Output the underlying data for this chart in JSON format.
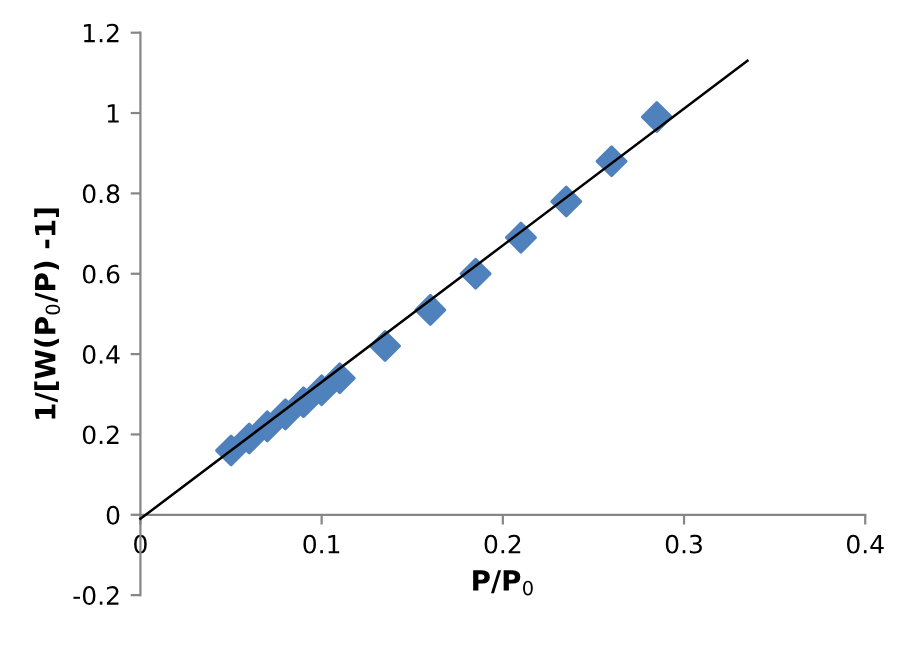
{
  "chart_data": {
    "type": "scatter",
    "xlabel": "P/P$_{0}$",
    "ylabel": "1/[W(P$_{0}$/P) -1]",
    "xlim": [
      0,
      0.4
    ],
    "ylim": [
      -0.2,
      1.2
    ],
    "xticks": [
      0,
      0.1,
      0.2,
      0.3,
      0.4
    ],
    "yticks": [
      -0.2,
      0,
      0.2,
      0.4,
      0.6,
      0.8,
      1,
      1.2
    ],
    "grid": false,
    "series": [
      {
        "color": "#4f81bd",
        "marker": "diamond",
        "x": [
          0.05,
          0.06,
          0.07,
          0.08,
          0.09,
          0.1,
          0.11,
          0.135,
          0.16,
          0.185,
          0.21,
          0.235,
          0.26,
          0.285
        ],
        "values": [
          0.16,
          0.19,
          0.22,
          0.25,
          0.28,
          0.31,
          0.34,
          0.42,
          0.51,
          0.6,
          0.69,
          0.78,
          0.88,
          0.99
        ]
      },
      {
        "type": "line",
        "color": "#000000",
        "x": [
          0,
          0.335
        ],
        "values": [
          -0.01,
          1.13
        ],
        "line_style": "solid",
        "marker": "none"
      }
    ]
  }
}
